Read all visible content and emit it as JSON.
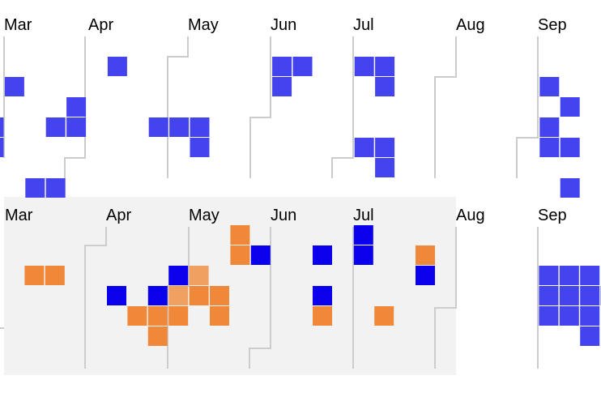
{
  "chart_data": {
    "type": "heatmap",
    "panels": [
      {
        "name": "",
        "month_labels": [
          "Mar",
          "Apr",
          "May",
          "Jun",
          "Jul",
          "Aug",
          "Sep"
        ],
        "cells": [
          {
            "week": 1,
            "day": 2,
            "category": "base"
          },
          {
            "week": 0,
            "day": 4,
            "category": "base"
          },
          {
            "week": 0,
            "day": 5,
            "category": "base"
          },
          {
            "week": 2,
            "day": 7,
            "category": "base"
          },
          {
            "week": 3,
            "day": 7,
            "category": "base"
          },
          {
            "week": 4,
            "day": 3,
            "category": "base"
          },
          {
            "week": 3,
            "day": 4,
            "category": "base"
          },
          {
            "week": 4,
            "day": 4,
            "category": "base"
          },
          {
            "week": 6,
            "day": 1,
            "category": "base"
          },
          {
            "week": 8,
            "day": 4,
            "category": "base"
          },
          {
            "week": 9,
            "day": 4,
            "category": "base"
          },
          {
            "week": 10,
            "day": 4,
            "category": "base"
          },
          {
            "week": 10,
            "day": 5,
            "category": "base"
          },
          {
            "week": 14,
            "day": 1,
            "category": "base"
          },
          {
            "week": 15,
            "day": 1,
            "category": "base"
          },
          {
            "week": 14,
            "day": 2,
            "category": "base"
          },
          {
            "week": 18,
            "day": 1,
            "category": "base"
          },
          {
            "week": 19,
            "day": 1,
            "category": "base"
          },
          {
            "week": 19,
            "day": 2,
            "category": "base"
          },
          {
            "week": 18,
            "day": 5,
            "category": "base"
          },
          {
            "week": 19,
            "day": 5,
            "category": "base"
          },
          {
            "week": 19,
            "day": 6,
            "category": "base"
          },
          {
            "week": 27,
            "day": 2,
            "category": "base"
          },
          {
            "week": 28,
            "day": 3,
            "category": "base"
          },
          {
            "week": 27,
            "day": 4,
            "category": "base"
          },
          {
            "week": 27,
            "day": 5,
            "category": "base"
          },
          {
            "week": 28,
            "day": 5,
            "category": "base"
          },
          {
            "week": 28,
            "day": 7,
            "category": "base"
          }
        ]
      },
      {
        "name": "",
        "month_labels": [
          "Mar",
          "Apr",
          "May",
          "Jun",
          "Jul",
          "Aug",
          "Sep"
        ],
        "cells": [
          {
            "week": 1,
            "day": 2,
            "category": "orange"
          },
          {
            "week": 2,
            "day": 2,
            "category": "orange"
          },
          {
            "week": 5,
            "day": 3,
            "category": "blue"
          },
          {
            "week": 6,
            "day": 4,
            "category": "orange"
          },
          {
            "week": 7,
            "day": 3,
            "category": "blue"
          },
          {
            "week": 7,
            "day": 4,
            "category": "orange"
          },
          {
            "week": 7,
            "day": 5,
            "category": "orange"
          },
          {
            "week": 8,
            "day": 2,
            "category": "blue"
          },
          {
            "week": 8,
            "day": 3,
            "category": "light-orange"
          },
          {
            "week": 8,
            "day": 4,
            "category": "orange"
          },
          {
            "week": 9,
            "day": 2,
            "category": "light-orange"
          },
          {
            "week": 9,
            "day": 3,
            "category": "orange"
          },
          {
            "week": 10,
            "day": 3,
            "category": "orange"
          },
          {
            "week": 10,
            "day": 4,
            "category": "orange"
          },
          {
            "week": 11,
            "day": 0,
            "category": "orange"
          },
          {
            "week": 11,
            "day": 1,
            "category": "orange"
          },
          {
            "week": 12,
            "day": 1,
            "category": "blue"
          },
          {
            "week": 15,
            "day": 1,
            "category": "blue"
          },
          {
            "week": 15,
            "day": 3,
            "category": "blue"
          },
          {
            "week": 15,
            "day": 4,
            "category": "orange"
          },
          {
            "week": 17,
            "day": 0,
            "category": "blue"
          },
          {
            "week": 17,
            "day": 1,
            "category": "blue"
          },
          {
            "week": 18,
            "day": 4,
            "category": "orange"
          },
          {
            "week": 20,
            "day": 1,
            "category": "orange"
          },
          {
            "week": 20,
            "day": 2,
            "category": "blue"
          },
          {
            "week": 26,
            "day": 2,
            "category": "base"
          },
          {
            "week": 27,
            "day": 2,
            "category": "base"
          },
          {
            "week": 28,
            "day": 2,
            "category": "base"
          },
          {
            "week": 26,
            "day": 3,
            "category": "base"
          },
          {
            "week": 27,
            "day": 3,
            "category": "base"
          },
          {
            "week": 28,
            "day": 3,
            "category": "base"
          },
          {
            "week": 29,
            "day": 3,
            "category": "base"
          },
          {
            "week": 26,
            "day": 4,
            "category": "base"
          },
          {
            "week": 27,
            "day": 4,
            "category": "base"
          },
          {
            "week": 28,
            "day": 4,
            "category": "base"
          },
          {
            "week": 28,
            "day": 5,
            "category": "base"
          }
        ]
      }
    ],
    "colors": {
      "base": "#4444ee",
      "blue": "#0a00ee",
      "orange": "#f0883a",
      "light-orange": "#f0a060",
      "boundary": "#cccccc",
      "highlight_background": "#f2f2f2"
    },
    "legend": "none",
    "grid": false
  }
}
